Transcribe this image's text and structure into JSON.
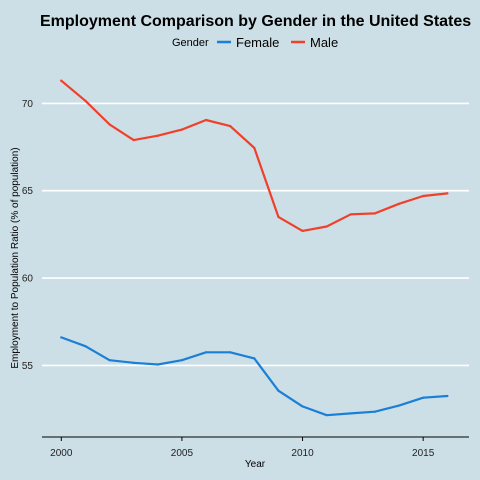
{
  "chart_data": {
    "type": "line",
    "title": "Employment Comparison by Gender in the United States",
    "xlabel": "Year",
    "ylabel": "Employment to Population Ratio (% of population)",
    "legend": {
      "title": "Gender",
      "position": "top"
    },
    "x": [
      2000,
      2001,
      2002,
      2003,
      2004,
      2005,
      2006,
      2007,
      2008,
      2009,
      2010,
      2011,
      2012,
      2013,
      2014,
      2015,
      2016
    ],
    "series": [
      {
        "name": "Female",
        "color": "#1a7fd6",
        "values": [
          56.6,
          56.1,
          55.3,
          55.15,
          55.05,
          55.3,
          55.75,
          55.75,
          55.4,
          53.55,
          52.65,
          52.15,
          52.25,
          52.35,
          52.7,
          53.15,
          53.25
        ]
      },
      {
        "name": "Male",
        "color": "#f0402a",
        "values": [
          71.3,
          70.15,
          68.8,
          67.9,
          68.15,
          68.5,
          69.05,
          68.7,
          67.45,
          63.5,
          62.7,
          62.95,
          63.65,
          63.7,
          64.25,
          64.7,
          64.85
        ]
      }
    ],
    "xticks": [
      2000,
      2005,
      2010,
      2015
    ],
    "yticks": [
      55,
      60,
      65,
      70
    ],
    "xlim": [
      1999.2,
      2016.9
    ],
    "ylim": [
      50.9,
      72.6
    ],
    "grid": true
  }
}
